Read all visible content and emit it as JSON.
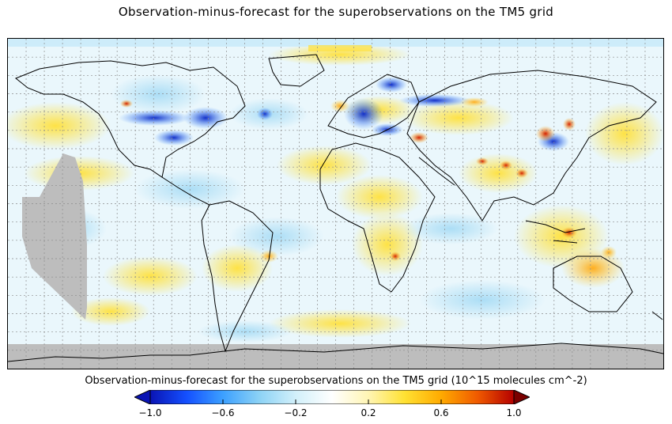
{
  "title": "Observation-minus-forecast for the superobservations on the TM5 grid",
  "colorbar": {
    "title": "Observation-minus-forecast for the superobservations on the TM5 grid (10^15 molecules cm^-2)",
    "min": -1.0,
    "max": 1.0,
    "ticks": [
      {
        "value": -1.0,
        "label": "−1.0"
      },
      {
        "value": -0.6,
        "label": "−0.6"
      },
      {
        "value": -0.2,
        "label": "−0.2"
      },
      {
        "value": 0.2,
        "label": "0.2"
      },
      {
        "value": 0.6,
        "label": "0.6"
      },
      {
        "value": 1.0,
        "label": "1.0"
      }
    ],
    "colors": [
      "#0a14b4",
      "#1450ff",
      "#3ca0ff",
      "#8cd2f5",
      "#d2f0fa",
      "#ffffff",
      "#fff5b4",
      "#ffe132",
      "#ffaa00",
      "#f05a00",
      "#b40000"
    ]
  },
  "map": {
    "projection": "plate carree",
    "grid": "dashed graticule",
    "missing_color": "#bdbdbd"
  }
}
